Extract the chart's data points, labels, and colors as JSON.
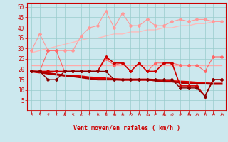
{
  "x": [
    0,
    1,
    2,
    3,
    4,
    5,
    6,
    7,
    8,
    9,
    10,
    11,
    12,
    13,
    14,
    15,
    16,
    17,
    18,
    19,
    20,
    21,
    22,
    23
  ],
  "background_color": "#cce8ee",
  "grid_color": "#99cccc",
  "xlabel": "Vent moyen/en rafales ( km/h )",
  "xlabel_color": "#cc0000",
  "tick_color": "#cc0000",
  "series": [
    {
      "label": "rafales_max",
      "color": "#ff9999",
      "linewidth": 0.8,
      "marker": "D",
      "markersize": 2.0,
      "values": [
        29,
        37,
        29,
        29,
        29,
        29,
        36,
        40,
        41,
        48,
        40,
        47,
        41,
        41,
        44,
        41,
        41,
        43,
        44,
        43,
        44,
        44,
        43,
        43
      ]
    },
    {
      "label": "rafales_trend",
      "color": "#ffbbbb",
      "linewidth": 1.0,
      "marker": null,
      "markersize": 0,
      "values": [
        28,
        29,
        30,
        31,
        32,
        33,
        34,
        35,
        35,
        36,
        37,
        37,
        38,
        38,
        39,
        39,
        40,
        40,
        41,
        41,
        42,
        42,
        43,
        43
      ]
    },
    {
      "label": "vent_max",
      "color": "#ff6666",
      "linewidth": 0.8,
      "marker": "D",
      "markersize": 2.0,
      "values": [
        19,
        19,
        29,
        29,
        19,
        19,
        19,
        19,
        19,
        25,
        22,
        23,
        19,
        23,
        19,
        23,
        23,
        23,
        22,
        22,
        22,
        19,
        26,
        26
      ]
    },
    {
      "label": "vent_max_trend",
      "color": "#ffaaaa",
      "linewidth": 1.0,
      "marker": null,
      "markersize": 0,
      "values": [
        22,
        22,
        22,
        22,
        22,
        22,
        22,
        22,
        22,
        22,
        22,
        22,
        22,
        22,
        22,
        22,
        22,
        22,
        22,
        22,
        22,
        22,
        22,
        22
      ]
    },
    {
      "label": "vent_moyen",
      "color": "#cc0000",
      "linewidth": 1.2,
      "marker": "D",
      "markersize": 2.0,
      "values": [
        19,
        19,
        19,
        19,
        19,
        19,
        19,
        19,
        19,
        26,
        23,
        23,
        19,
        23,
        19,
        19,
        23,
        23,
        12,
        12,
        12,
        7,
        15,
        15
      ]
    },
    {
      "label": "vent_moyen_trend",
      "color": "#dd0000",
      "linewidth": 2.2,
      "marker": null,
      "markersize": 0,
      "values": [
        19,
        18.5,
        18,
        17.5,
        17,
        16.8,
        16.5,
        16,
        15.8,
        15.5,
        15.2,
        15,
        15,
        15,
        15,
        14.8,
        14.5,
        14.2,
        14,
        13.8,
        13.5,
        13.2,
        13,
        13
      ]
    },
    {
      "label": "vent_min",
      "color": "#880000",
      "linewidth": 1.0,
      "marker": "D",
      "markersize": 2.0,
      "values": [
        19,
        19,
        15,
        15,
        19,
        19,
        19,
        19,
        19,
        19,
        15,
        15,
        15,
        15,
        15,
        15,
        15,
        15,
        11,
        11,
        11,
        7,
        15,
        15
      ]
    },
    {
      "label": "vent_min_trend",
      "color": "#aa0000",
      "linewidth": 1.5,
      "marker": null,
      "markersize": 0,
      "values": [
        19,
        18.5,
        18,
        17.5,
        17,
        16.5,
        16,
        15.5,
        15,
        15,
        15,
        15,
        15,
        15,
        15,
        14.5,
        14,
        14,
        13.5,
        13,
        13,
        13,
        13,
        13
      ]
    }
  ],
  "ylim": [
    0,
    52
  ],
  "yticks": [
    5,
    10,
    15,
    20,
    25,
    30,
    35,
    40,
    45,
    50
  ],
  "arrow_color": "#cc0000"
}
